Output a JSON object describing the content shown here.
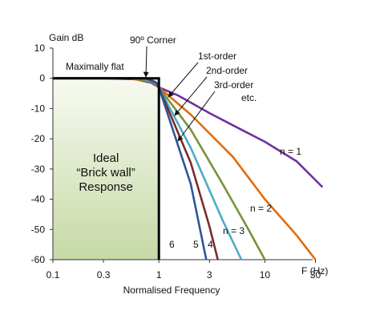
{
  "chart_data": {
    "type": "line",
    "ylabel": "Gain dB",
    "xlabel": "Normalised Frequency",
    "x_axis_unit": "F (Hz)",
    "x_scale": "log",
    "xlim": [
      0.1,
      40
    ],
    "ylim": [
      -60,
      10
    ],
    "x_ticks": [
      {
        "v": 0.1,
        "label": "0.1"
      },
      {
        "v": 0.3,
        "label": "0.3"
      },
      {
        "v": 1,
        "label": "1"
      },
      {
        "v": 3,
        "label": "3"
      },
      {
        "v": 10,
        "label": "10"
      },
      {
        "v": 30,
        "label": "30"
      }
    ],
    "y_ticks": [
      {
        "v": 10,
        "label": "10"
      },
      {
        "v": 0,
        "label": "0"
      },
      {
        "v": -10,
        "label": "-10"
      },
      {
        "v": -20,
        "label": "-20"
      },
      {
        "v": -30,
        "label": "-30"
      },
      {
        "v": -40,
        "label": "-40"
      },
      {
        "v": -50,
        "label": "-50"
      },
      {
        "v": -60,
        "label": "-60"
      }
    ],
    "ideal_region": {
      "x_range": [
        0.1,
        1
      ],
      "label_lines": [
        "Ideal",
        "“Brick wall”",
        "Response"
      ],
      "top_label": "Maximally flat"
    },
    "series": [
      {
        "name": "n = 1",
        "color": "#7030a0",
        "x": [
          0.1,
          0.3,
          0.6,
          0.85,
          1,
          1.5,
          3,
          6,
          10,
          20,
          35
        ],
        "y": [
          0,
          0,
          -0.3,
          -1.5,
          -3,
          -5.6,
          -11.5,
          -17,
          -21,
          -27.5,
          -36
        ]
      },
      {
        "name": "n = 2",
        "color": "#e36c09",
        "x": [
          0.1,
          0.5,
          0.85,
          1,
          2,
          5,
          10,
          20,
          30
        ],
        "y": [
          0,
          0,
          -1,
          -3,
          -12,
          -26,
          -40,
          -52,
          -60
        ]
      },
      {
        "name": "n = 3",
        "color": "#77933c",
        "x": [
          0.1,
          0.6,
          0.9,
          1,
          2,
          4,
          7,
          10
        ],
        "y": [
          0,
          0,
          -1.5,
          -3,
          -17,
          -35,
          -50,
          -60
        ]
      },
      {
        "name": "4",
        "color": "#4bacc6",
        "x": [
          0.1,
          0.7,
          0.92,
          1,
          2,
          4,
          6
        ],
        "y": [
          0,
          0,
          -1.5,
          -3,
          -23,
          -47,
          -60
        ]
      },
      {
        "name": "5",
        "color": "#7b2c2c",
        "x": [
          0.1,
          0.75,
          0.94,
          1,
          2,
          3,
          3.6
        ],
        "y": [
          0,
          0,
          -1.5,
          -3,
          -28,
          -49,
          -60
        ]
      },
      {
        "name": "6",
        "color": "#2f5597",
        "x": [
          0.1,
          0.8,
          0.95,
          1,
          2,
          2.8
        ],
        "y": [
          0,
          0,
          -1.5,
          -3,
          -35,
          -60
        ]
      }
    ],
    "annotations": [
      {
        "text": "90º Corner"
      },
      {
        "text": "1st-order"
      },
      {
        "text": "2nd-order"
      },
      {
        "text": "3rd-order"
      },
      {
        "text": "etc."
      }
    ]
  }
}
